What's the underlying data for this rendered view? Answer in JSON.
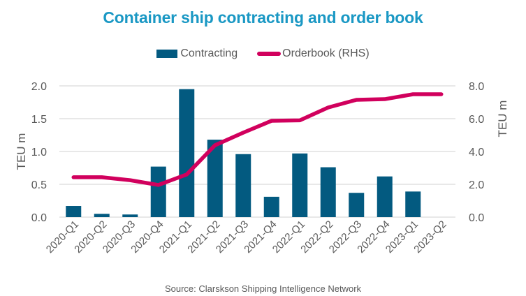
{
  "chart_data": {
    "type": "bar+line",
    "title": "Container ship contracting and order book",
    "categories": [
      "2020-Q1",
      "2020-Q2",
      "2020-Q3",
      "2020-Q4",
      "2021-Q1",
      "2021-Q2",
      "2021-Q3",
      "2021-Q4",
      "2022-Q1",
      "2022-Q2",
      "2022-Q3",
      "2022-Q4",
      "2023-Q1",
      "2023-Q2"
    ],
    "series": [
      {
        "name": "Contracting",
        "type": "bar",
        "axis": "left",
        "color": "#035a80",
        "values": [
          0.17,
          0.05,
          0.04,
          0.77,
          1.95,
          1.18,
          0.96,
          0.31,
          0.97,
          0.76,
          0.37,
          0.62,
          0.39,
          null
        ]
      },
      {
        "name": "Orderbook (RHS)",
        "type": "line",
        "axis": "right",
        "color": "#d1005d",
        "values": [
          2.43,
          2.43,
          2.25,
          1.96,
          2.6,
          4.38,
          5.15,
          5.87,
          5.9,
          6.68,
          7.15,
          7.19,
          7.49,
          7.49
        ]
      }
    ],
    "left_axis": {
      "label": "TEU m",
      "ylim": [
        0,
        2.0
      ],
      "ticks": [
        "0.0",
        "0.5",
        "1.0",
        "1.5",
        "2.0"
      ]
    },
    "right_axis": {
      "label": "TEU m",
      "ylim": [
        0,
        8.0
      ],
      "ticks": [
        "0.0",
        "2.0",
        "4.0",
        "6.0",
        "8.0"
      ]
    },
    "xlabel": "",
    "grid": true,
    "legend_position": "top-center"
  },
  "legend": {
    "contracting": "Contracting",
    "orderbook": "Orderbook (RHS)"
  },
  "source": "Source: Clarskson Shipping Intelligence Network"
}
